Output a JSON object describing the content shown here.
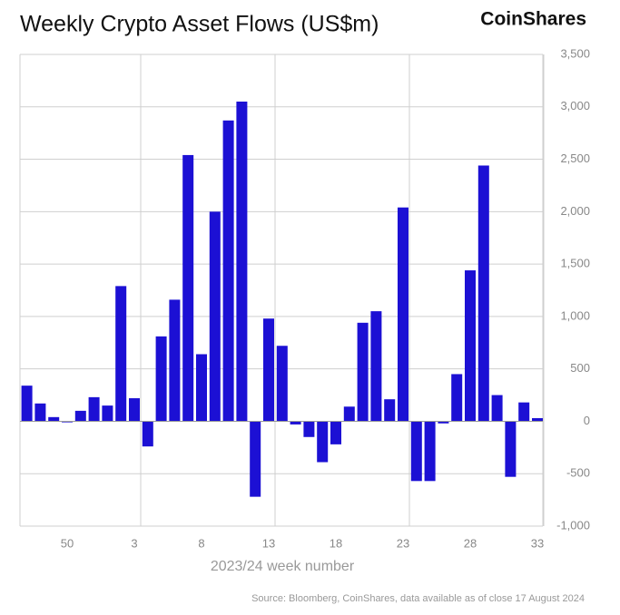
{
  "chart_data": {
    "type": "bar",
    "title": "Weekly Crypto Asset Flows (US$m)",
    "brand": "CoinShares",
    "x_label": "2023/24 week number",
    "source": "Source: Bloomberg, CoinShares, data available as of close 17 August 2024",
    "color": "#1c10d4",
    "categories": [
      null,
      null,
      null,
      "50",
      null,
      null,
      null,
      null,
      "3",
      null,
      null,
      null,
      null,
      "8",
      null,
      null,
      null,
      null,
      "13",
      null,
      null,
      null,
      null,
      "18",
      null,
      null,
      null,
      null,
      "23",
      null,
      null,
      null,
      null,
      "28",
      null,
      null,
      null,
      null,
      "33"
    ],
    "values": [
      340,
      170,
      40,
      -10,
      100,
      230,
      150,
      1290,
      220,
      -240,
      810,
      1160,
      2540,
      640,
      2000,
      2870,
      3050,
      -720,
      980,
      720,
      -30,
      -150,
      -390,
      -220,
      140,
      940,
      1050,
      210,
      2040,
      -570,
      -570,
      -20,
      450,
      1440,
      2440,
      250,
      -530,
      180,
      30
    ],
    "ylim": [
      -1000,
      3500
    ],
    "yticks": [
      {
        "value": -1000,
        "label": "-1,000"
      },
      -500,
      0,
      500,
      {
        "value": 1000,
        "label": "1,000"
      },
      {
        "value": 1500,
        "label": "1,500"
      },
      {
        "value": 2000,
        "label": "2,000"
      },
      {
        "value": 2500,
        "label": "2,500"
      },
      {
        "value": 3000,
        "label": "3,000"
      },
      {
        "value": 3500,
        "label": "3,500"
      }
    ],
    "grid": true
  }
}
